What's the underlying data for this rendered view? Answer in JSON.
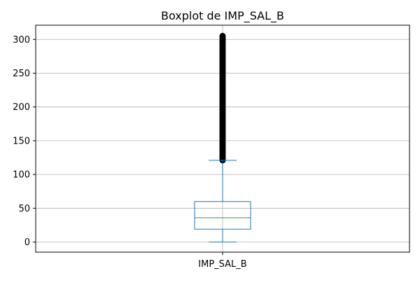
{
  "chart_data": {
    "type": "boxplot",
    "title": "Boxplot de IMP_SAL_B",
    "xlabel": "",
    "ylabel": "",
    "categories": [
      "IMP_SAL_B"
    ],
    "ylim": [
      -15,
      321
    ],
    "yticks": [
      0,
      50,
      100,
      150,
      200,
      250,
      300
    ],
    "grid": true,
    "boxes": [
      {
        "name": "IMP_SAL_B",
        "whisker_low": 0,
        "q1": 19,
        "median": 36,
        "q3": 60,
        "whisker_high": 121,
        "outlier_range": [
          121,
          305
        ]
      }
    ],
    "colors": {
      "box": "#1f77b4",
      "median": "#2ca02c",
      "outliers": "#000000",
      "grid": "#b0b0b0"
    }
  }
}
